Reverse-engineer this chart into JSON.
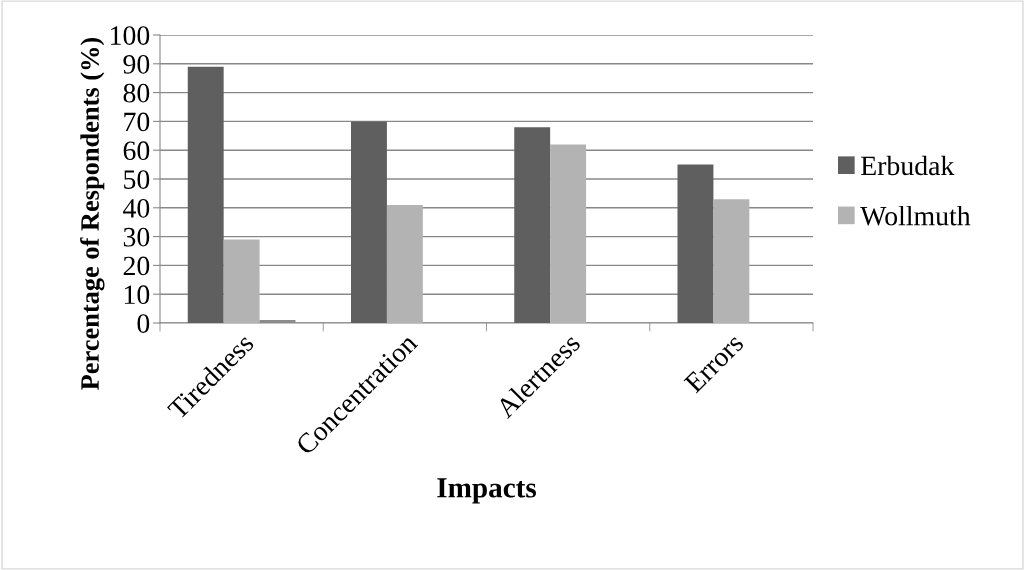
{
  "chart_data": {
    "type": "bar",
    "xlabel": "Impacts",
    "ylabel": "Percentage of Respondents (%)",
    "categories": [
      "Tiredness",
      "Concentration",
      "Alertness",
      "Errors"
    ],
    "series": [
      {
        "name": "Erbudak",
        "color": "#5f5f5f",
        "values": [
          89,
          70,
          68,
          55
        ]
      },
      {
        "name": "Wollmuth",
        "color": "#b3b3b3",
        "values": [
          29,
          41,
          62,
          43
        ]
      },
      {
        "color": "#8c8c8c",
        "values": [
          1,
          null,
          null,
          null
        ]
      }
    ],
    "ylim": [
      0,
      100
    ],
    "yticks": [
      0,
      10,
      20,
      30,
      40,
      50,
      60,
      70,
      80,
      90,
      100
    ],
    "grid": "y",
    "legend": "right"
  }
}
